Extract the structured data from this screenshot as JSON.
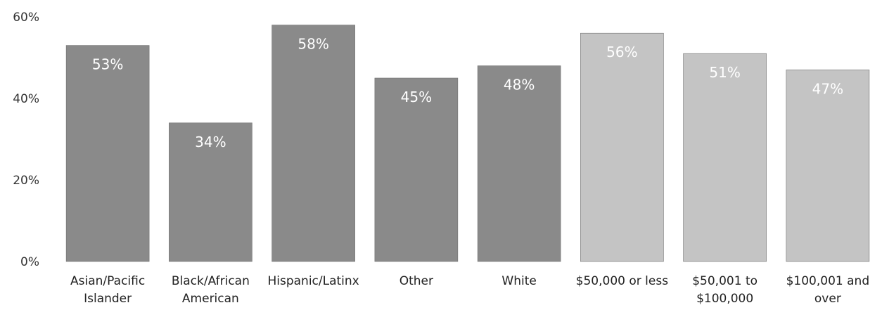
{
  "chart_data": {
    "type": "bar",
    "categories": [
      [
        "Asian/Pacific",
        "Islander"
      ],
      [
        "Black/African",
        "American"
      ],
      [
        "Hispanic/Latinx"
      ],
      [
        "Other"
      ],
      [
        "White"
      ],
      [
        "$50,000 or less"
      ],
      [
        "$50,001 to",
        "$100,000"
      ],
      [
        "$100,001 and",
        "over"
      ]
    ],
    "values": [
      53,
      34,
      58,
      45,
      48,
      56,
      51,
      47
    ],
    "data_labels": [
      "53%",
      "34%",
      "58%",
      "45%",
      "48%",
      "56%",
      "51%",
      "47%"
    ],
    "bar_colors": [
      "#8a8a8a",
      "#8a8a8a",
      "#8a8a8a",
      "#8a8a8a",
      "#8a8a8a",
      "#c4c4c4",
      "#c4c4c4",
      "#c4c4c4"
    ],
    "ylim": [
      0,
      60
    ],
    "yticks": [
      0,
      20,
      40,
      60
    ],
    "ytick_labels": [
      "0%",
      "20%",
      "40%",
      "60%"
    ],
    "grid": false,
    "title": "",
    "xlabel": "",
    "ylabel": ""
  }
}
